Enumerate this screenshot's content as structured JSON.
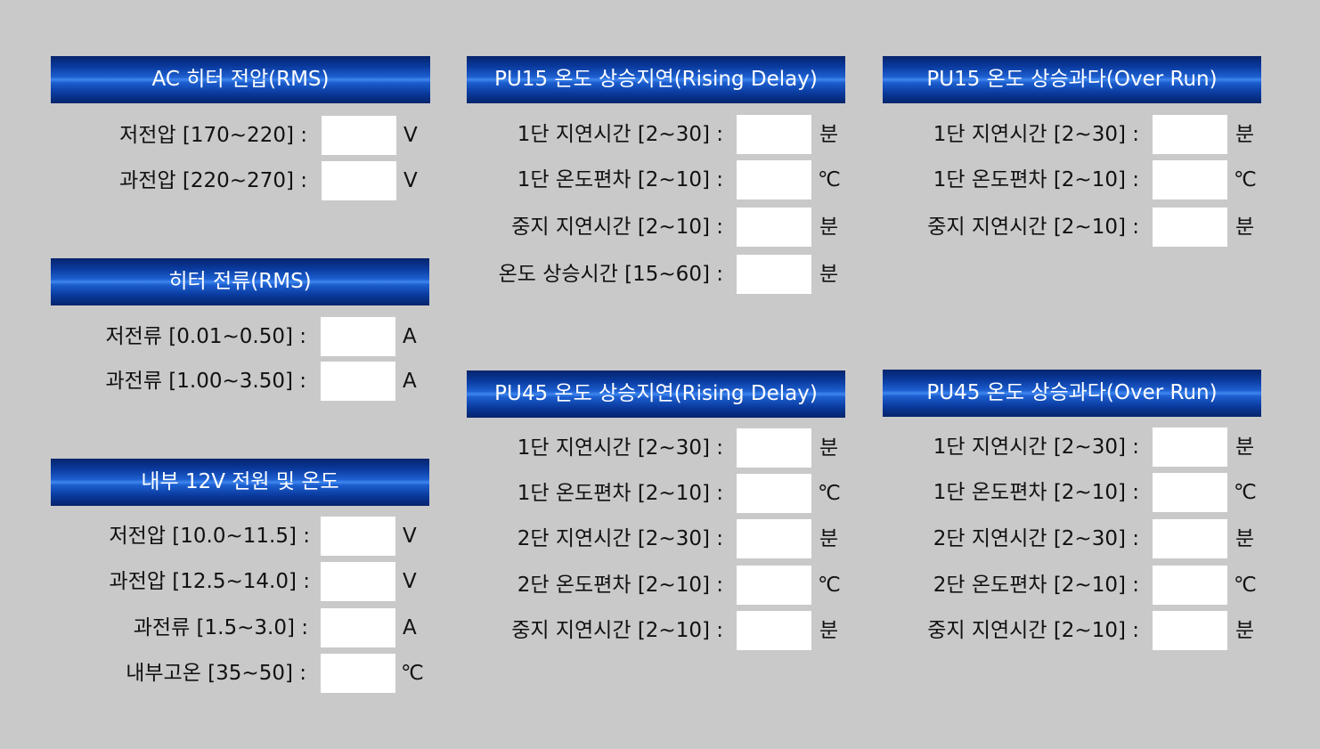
{
  "panels": [
    {
      "id": "ac-heater-voltage",
      "title": "AC 히터 전압(RMS)",
      "rows": [
        {
          "label": "저전압 [170~220] :",
          "value": "",
          "unit": "V"
        },
        {
          "label": "과전압 [220~270] :",
          "value": "",
          "unit": "V"
        }
      ]
    },
    {
      "id": "heater-current",
      "title": "히터 전류(RMS)",
      "rows": [
        {
          "label": "저전류 [0.01~0.50] :",
          "value": "",
          "unit": "A"
        },
        {
          "label": "과전류 [1.00~3.50] :",
          "value": "",
          "unit": "A"
        }
      ]
    },
    {
      "id": "internal-12v",
      "title": "내부 12V 전원 및 온도",
      "rows": [
        {
          "label": "저전압 [10.0~11.5] :",
          "value": "",
          "unit": "V"
        },
        {
          "label": "과전압 [12.5~14.0] :",
          "value": "",
          "unit": "V"
        },
        {
          "label": "과전류 [1.5~3.0] :",
          "value": "",
          "unit": "A"
        },
        {
          "label": "내부고온 [35~50] :",
          "value": "",
          "unit": "℃"
        }
      ]
    },
    {
      "id": "pu15-rising-delay",
      "title": "PU15 온도 상승지연(Rising Delay)",
      "rows": [
        {
          "label": "1단 지연시간 [2~30] :",
          "value": "",
          "unit": "분"
        },
        {
          "label": "1단 온도편차 [2~10] :",
          "value": "",
          "unit": "℃"
        },
        {
          "label": "중지 지연시간 [2~10] :",
          "value": "",
          "unit": "분"
        },
        {
          "label": "온도 상승시간 [15~60] :",
          "value": "",
          "unit": "분"
        }
      ]
    },
    {
      "id": "pu45-rising-delay",
      "title": "PU45 온도 상승지연(Rising Delay)",
      "rows": [
        {
          "label": "1단 지연시간 [2~30] :",
          "value": "",
          "unit": "분"
        },
        {
          "label": "1단 온도편차 [2~10] :",
          "value": "",
          "unit": "℃"
        },
        {
          "label": "2단 지연시간 [2~30] :",
          "value": "",
          "unit": "분"
        },
        {
          "label": "2단 온도편차 [2~10] :",
          "value": "",
          "unit": "℃"
        },
        {
          "label": "중지 지연시간 [2~10] :",
          "value": "",
          "unit": "분"
        }
      ]
    },
    {
      "id": "pu15-over-run",
      "title": "PU15 온도 상승과다(Over Run)",
      "rows": [
        {
          "label": "1단 지연시간 [2~30] :",
          "value": "",
          "unit": "분"
        },
        {
          "label": "1단 온도편차 [2~10] :",
          "value": "",
          "unit": "℃"
        },
        {
          "label": "중지 지연시간 [2~10] :",
          "value": "",
          "unit": "분"
        }
      ]
    },
    {
      "id": "pu45-over-run",
      "title": "PU45 온도 상승과다(Over Run)",
      "rows": [
        {
          "label": "1단 지연시간 [2~30] :",
          "value": "",
          "unit": "분"
        },
        {
          "label": "1단 온도편차 [2~10] :",
          "value": "",
          "unit": "℃"
        },
        {
          "label": "2단 지연시간 [2~30] :",
          "value": "",
          "unit": "분"
        },
        {
          "label": "2단 온도편차 [2~10] :",
          "value": "",
          "unit": "℃"
        },
        {
          "label": "중지 지연시간 [2~10] :",
          "value": "",
          "unit": "분"
        }
      ]
    }
  ]
}
